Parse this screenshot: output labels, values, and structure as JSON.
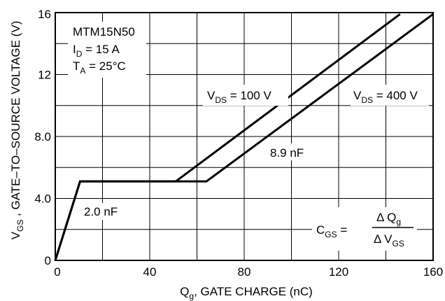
{
  "chart_data": {
    "type": "line",
    "xlabel": {
      "prefix": "Q",
      "sub": "g",
      "suffix": ", GATE CHARGE (nC)"
    },
    "ylabel": {
      "prefix": "V",
      "sub": "GS",
      "suffix": " , GATE–TO–SOURCE VOLTAGE (V)"
    },
    "xlim": [
      0,
      160
    ],
    "ylim": [
      0,
      16
    ],
    "x_ticks": [
      0,
      40,
      80,
      120,
      160
    ],
    "x_tick_labels": [
      "0",
      "40",
      "80",
      "120",
      "160"
    ],
    "y_ticks": [
      0,
      4,
      8,
      12,
      16
    ],
    "y_tick_labels": [
      "0",
      "4.0",
      "8.0",
      "12",
      "16"
    ],
    "grid": true,
    "x_grid_step": 20,
    "y_grid_step": 2,
    "series": [
      {
        "name_prefix": "V",
        "name_sub": "DS",
        "name_suffix": " = 100 V",
        "points": [
          [
            0,
            0
          ],
          [
            10.5,
            5.1
          ],
          [
            51,
            5.1
          ],
          [
            146,
            15.9
          ]
        ]
      },
      {
        "name_prefix": "V",
        "name_sub": "DS",
        "name_suffix": " = 400 V",
        "points": [
          [
            0,
            0
          ],
          [
            10.5,
            5.1
          ],
          [
            64,
            5.1
          ],
          [
            160,
            15.9
          ]
        ]
      }
    ],
    "info_block": [
      {
        "main": "MTM15N50",
        "sub": "",
        "rest": ""
      },
      {
        "main": "I",
        "sub": "D",
        "rest": " = 15 A"
      },
      {
        "main": "T",
        "sub": "A",
        "rest": " = 25°C"
      }
    ],
    "annotations": {
      "cap_low": "2.0 nF",
      "cap_high": "8.9 nF"
    },
    "formula": {
      "lhs_main": "C",
      "lhs_sub": "GS",
      "equals": " =",
      "num_main": "Δ Q",
      "num_sub": "g",
      "den_main": "Δ V",
      "den_sub": "GS"
    }
  }
}
